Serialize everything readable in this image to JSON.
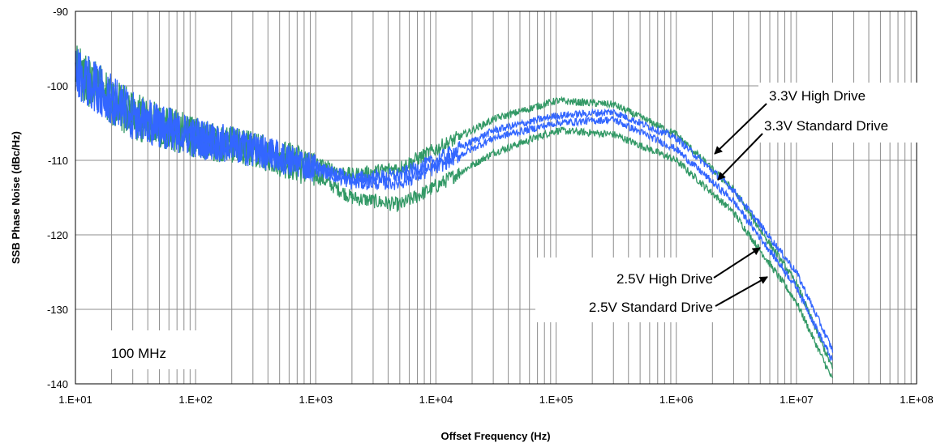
{
  "chart_data": {
    "type": "line",
    "title": "",
    "xlabel": "Offset Frequency (Hz)",
    "ylabel": "SSB Phase  Noise (dBc/Hz)",
    "x_scale": "log",
    "xlim": [
      10,
      100000000
    ],
    "ylim": [
      -140,
      -90
    ],
    "grid": true,
    "x_ticks": [
      10,
      100,
      1000,
      10000,
      100000,
      1000000,
      10000000,
      100000000
    ],
    "x_tick_labels": [
      "1.E+01",
      "1.E+02",
      "1.E+03",
      "1.E+04",
      "1.E+05",
      "1.E+06",
      "1.E+07",
      "1.E+08"
    ],
    "y_ticks": [
      -90,
      -100,
      -110,
      -120,
      -130,
      -140
    ],
    "y_tick_labels": [
      "-90",
      "-100",
      "-110",
      "-120",
      "-130",
      "-140"
    ],
    "annotation": "100 MHz",
    "series": [
      {
        "name": "3.3V High Drive",
        "color": "#3366ff",
        "points": [
          [
            10,
            -98
          ],
          [
            30,
            -104
          ],
          [
            100,
            -107
          ],
          [
            300,
            -108.5
          ],
          [
            1000,
            -111
          ],
          [
            2000,
            -112.5
          ],
          [
            5000,
            -112
          ],
          [
            10000,
            -110
          ],
          [
            30000,
            -106
          ],
          [
            100000,
            -104
          ],
          [
            300000,
            -103.5
          ],
          [
            1000000,
            -107
          ],
          [
            3000000,
            -114
          ],
          [
            10000000,
            -125
          ],
          [
            20000000,
            -135.5
          ]
        ]
      },
      {
        "name": "3.3V Standard Drive",
        "color": "#3366ff",
        "points": [
          [
            10,
            -98
          ],
          [
            30,
            -104
          ],
          [
            100,
            -107
          ],
          [
            300,
            -108.5
          ],
          [
            1000,
            -111
          ],
          [
            2000,
            -113
          ],
          [
            5000,
            -113
          ],
          [
            10000,
            -111
          ],
          [
            30000,
            -107
          ],
          [
            100000,
            -105
          ],
          [
            300000,
            -104.5
          ],
          [
            1000000,
            -108.5
          ],
          [
            3000000,
            -115.5
          ],
          [
            10000000,
            -127
          ],
          [
            20000000,
            -137
          ]
        ]
      },
      {
        "name": "2.5V High Drive",
        "color": "#339966",
        "points": [
          [
            10,
            -98
          ],
          [
            30,
            -104
          ],
          [
            100,
            -107
          ],
          [
            300,
            -108.5
          ],
          [
            1000,
            -110.5
          ],
          [
            2000,
            -112
          ],
          [
            5000,
            -111
          ],
          [
            10000,
            -108.5
          ],
          [
            30000,
            -104.5
          ],
          [
            100000,
            -102
          ],
          [
            300000,
            -102.5
          ],
          [
            1000000,
            -106.5
          ],
          [
            3000000,
            -114
          ],
          [
            10000000,
            -126.5
          ],
          [
            20000000,
            -138
          ]
        ]
      },
      {
        "name": "2.5V Standard Drive",
        "color": "#339966",
        "points": [
          [
            10,
            -98
          ],
          [
            30,
            -104
          ],
          [
            100,
            -107
          ],
          [
            300,
            -108.5
          ],
          [
            1000,
            -112
          ],
          [
            2000,
            -115
          ],
          [
            5000,
            -116
          ],
          [
            10000,
            -113.5
          ],
          [
            30000,
            -109
          ],
          [
            100000,
            -106
          ],
          [
            300000,
            -106.5
          ],
          [
            1000000,
            -110
          ],
          [
            3000000,
            -117
          ],
          [
            10000000,
            -129
          ],
          [
            20000000,
            -139.5
          ]
        ]
      }
    ]
  }
}
